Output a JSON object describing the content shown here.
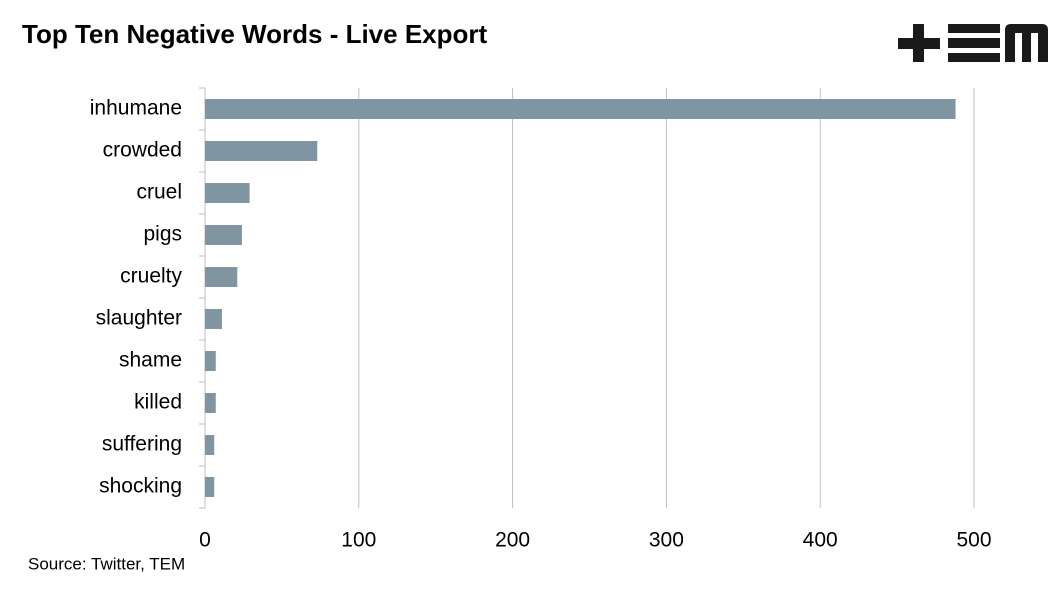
{
  "chart_data": {
    "type": "bar",
    "orientation": "horizontal",
    "title": "Top Ten Negative Words - Live Export",
    "source": "Source: Twitter, TEM",
    "categories": [
      "inhumane",
      "crowded",
      "cruel",
      "pigs",
      "cruelty",
      "slaughter",
      "shame",
      "killed",
      "suffering",
      "shocking"
    ],
    "values": [
      488,
      73,
      29,
      24,
      21,
      11,
      7,
      7,
      6,
      6
    ],
    "color": "#7f96a2",
    "xlim": [
      0,
      500
    ],
    "xticks": [
      0,
      100,
      200,
      300,
      400,
      500
    ],
    "grid": true
  }
}
